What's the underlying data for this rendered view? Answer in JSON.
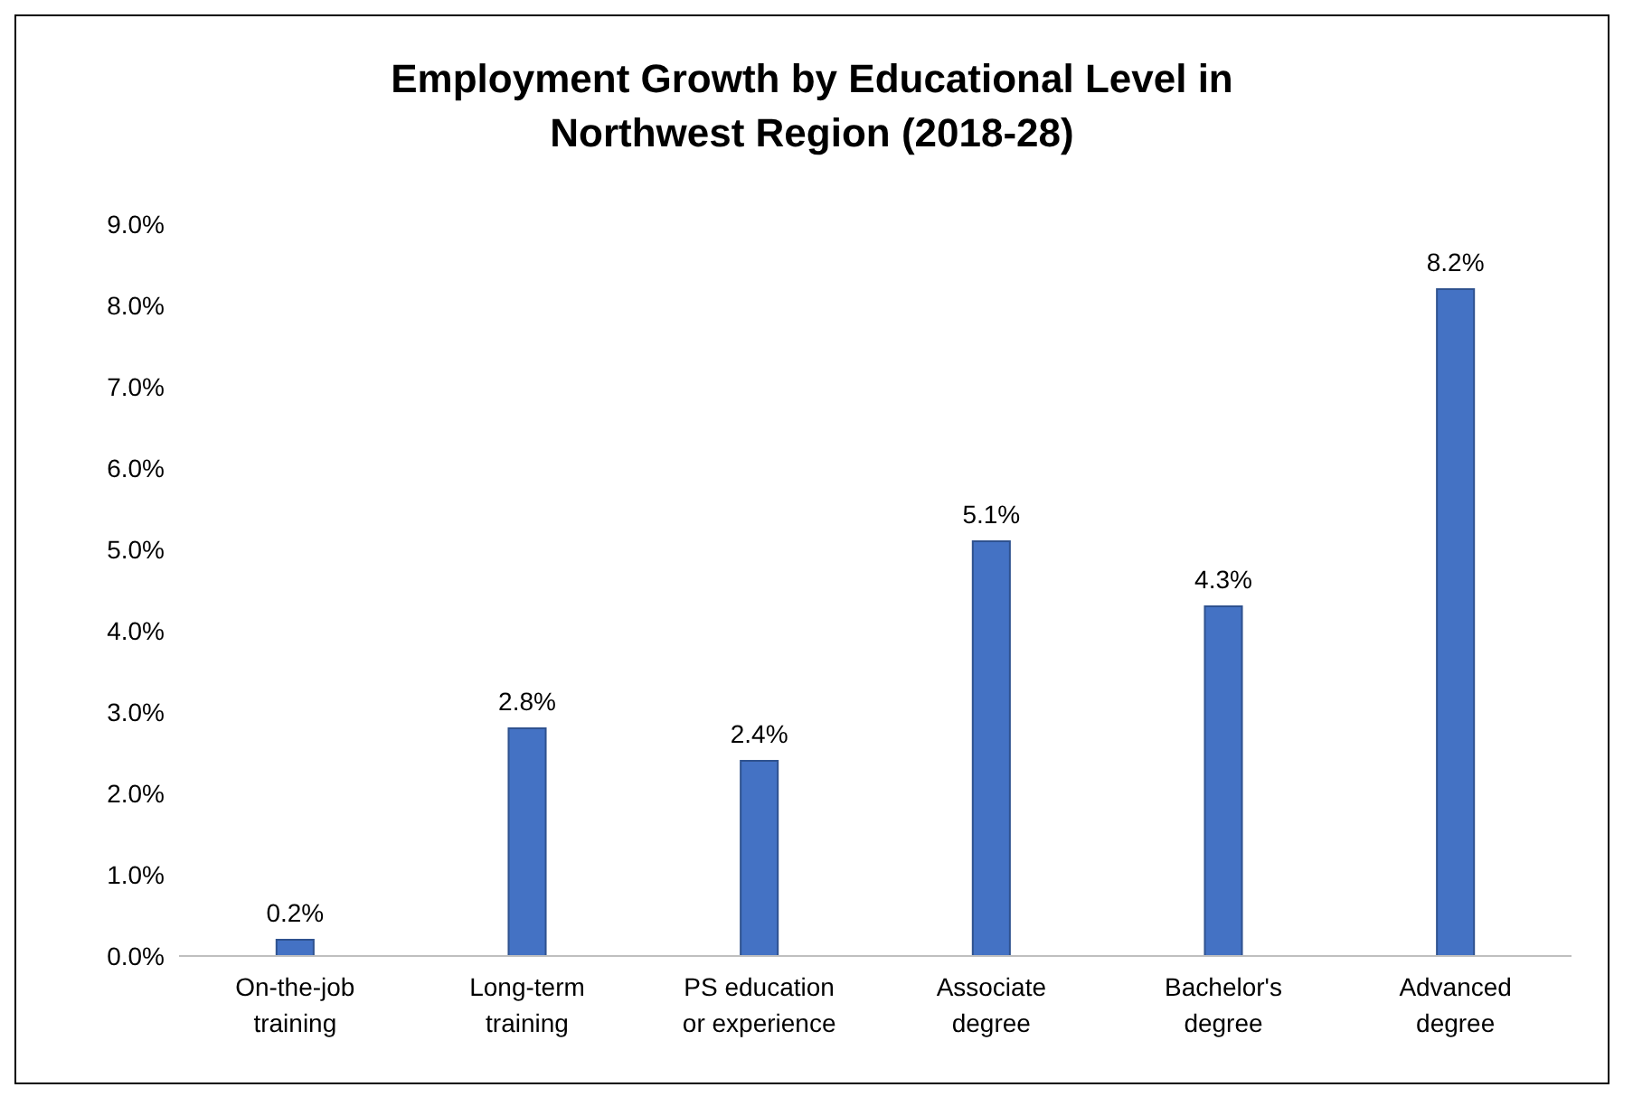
{
  "chart_data": {
    "type": "bar",
    "title": "Employment Growth by Educational Level in Northwest Region (2018-28)",
    "categories": [
      "On-the-job training",
      "Long-term training",
      "PS education or experience",
      "Associate degree",
      "Bachelor's degree",
      "Advanced degree"
    ],
    "values": [
      0.2,
      2.8,
      2.4,
      5.1,
      4.3,
      8.2
    ],
    "value_labels": [
      "0.2%",
      "2.8%",
      "2.4%",
      "5.1%",
      "4.3%",
      "8.2%"
    ],
    "color": "#4472c4",
    "ylim": [
      0,
      9
    ],
    "yticks": [
      {
        "value": 0,
        "label": "0.0%"
      },
      {
        "value": 1,
        "label": "1.0%"
      },
      {
        "value": 2,
        "label": "2.0%"
      },
      {
        "value": 3,
        "label": "3.0%"
      },
      {
        "value": 4,
        "label": "4.0%"
      },
      {
        "value": 5,
        "label": "5.0%"
      },
      {
        "value": 6,
        "label": "6.0%"
      },
      {
        "value": 7,
        "label": "7.0%"
      },
      {
        "value": 8,
        "label": "8.0%"
      },
      {
        "value": 9,
        "label": "9.0%"
      }
    ],
    "grid": false,
    "legend": false
  }
}
